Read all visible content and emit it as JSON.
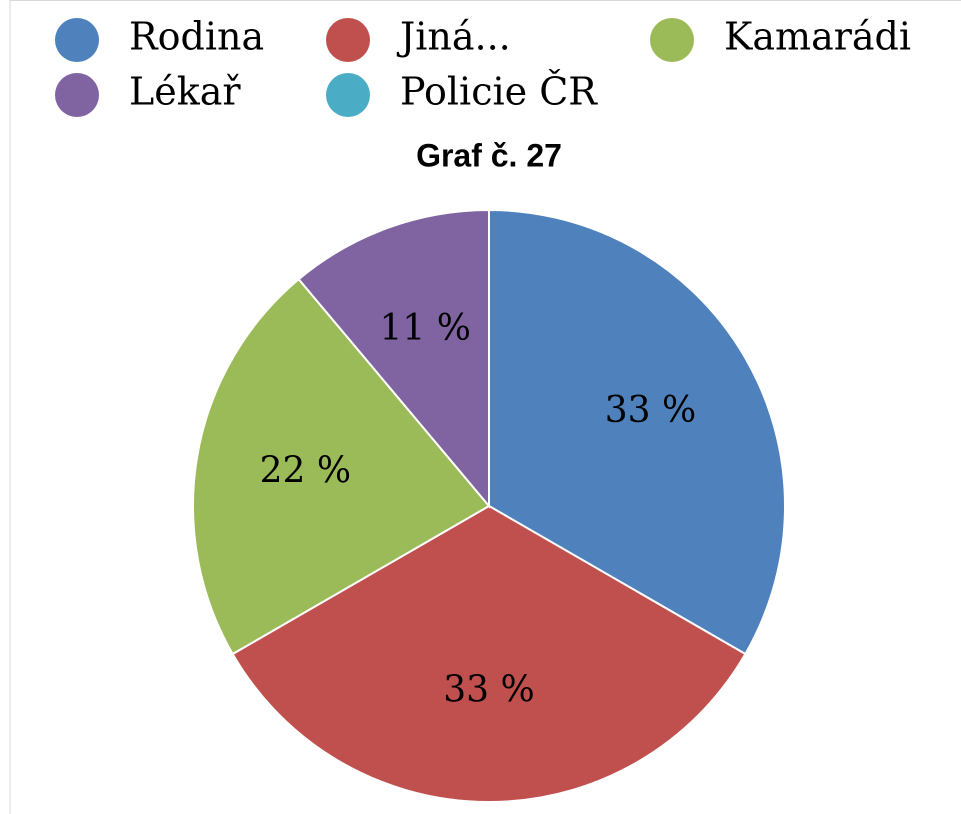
{
  "chart_data": {
    "type": "pie",
    "title": "Graf č. 27",
    "categories": [
      "Rodina",
      "Jiná...",
      "Kamarádi",
      "Lékař",
      "Policie ČR"
    ],
    "values": [
      33,
      33,
      22,
      11,
      0
    ],
    "value_labels": [
      "33 %",
      "33 %",
      "22 %",
      "11 %",
      null
    ],
    "colors": [
      "#4f81bd",
      "#c0504d",
      "#9bbb59",
      "#8064a2",
      "#4bacc6"
    ],
    "legend": "top"
  }
}
